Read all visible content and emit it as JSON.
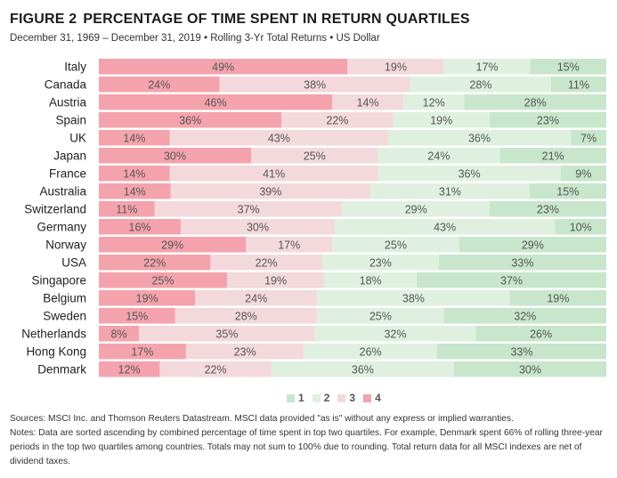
{
  "header": {
    "figure_number": "FIGURE 2",
    "title": "PERCENTAGE OF TIME SPENT IN RETURN QUARTILES",
    "subtitle": "December 31, 1969 – December 31, 2019 • Rolling 3-Yr Total Returns • US Dollar"
  },
  "colors": {
    "q4": "#f4a3ac",
    "q3": "#f3d9dc",
    "q2": "#dff0e1",
    "q1": "#c8e6cc",
    "label_text": "#555555"
  },
  "chart_data": {
    "type": "bar",
    "stacked": true,
    "orientation": "horizontal",
    "categories": [
      "Italy",
      "Canada",
      "Austria",
      "Spain",
      "UK",
      "Japan",
      "France",
      "Australia",
      "Switzerland",
      "Germany",
      "Norway",
      "USA",
      "Singapore",
      "Belgium",
      "Sweden",
      "Netherlands",
      "Hong Kong",
      "Denmark"
    ],
    "series": [
      {
        "name": "4",
        "values": [
          49,
          24,
          46,
          36,
          14,
          30,
          14,
          14,
          11,
          16,
          29,
          22,
          25,
          19,
          15,
          8,
          17,
          12
        ]
      },
      {
        "name": "3",
        "values": [
          19,
          38,
          14,
          22,
          43,
          25,
          41,
          39,
          37,
          30,
          17,
          22,
          19,
          24,
          28,
          35,
          23,
          22
        ]
      },
      {
        "name": "2",
        "values": [
          17,
          28,
          12,
          19,
          36,
          24,
          36,
          31,
          29,
          43,
          25,
          23,
          18,
          38,
          25,
          32,
          26,
          36
        ]
      },
      {
        "name": "1",
        "values": [
          15,
          11,
          28,
          23,
          7,
          21,
          9,
          15,
          23,
          10,
          29,
          33,
          37,
          19,
          32,
          26,
          33,
          30
        ]
      }
    ],
    "data_label_suffix": "%",
    "legend": [
      "1",
      "2",
      "3",
      "4"
    ],
    "legend_placement": "bottom-center",
    "grid": false
  },
  "notes": {
    "sources": "Sources: MSCI Inc. and Thomson Reuters Datastream. MSCI data provided \"as is\" without any express or implied warranties.",
    "notes": "Notes: Data are sorted ascending by combined percentage of time spent in top two quartiles. For example, Denmark spent 66% of rolling three-year periods in the top two quartiles among countries. Totals may not sum to 100% due to rounding. Total return data for all MSCI indexes are net of dividend taxes."
  }
}
